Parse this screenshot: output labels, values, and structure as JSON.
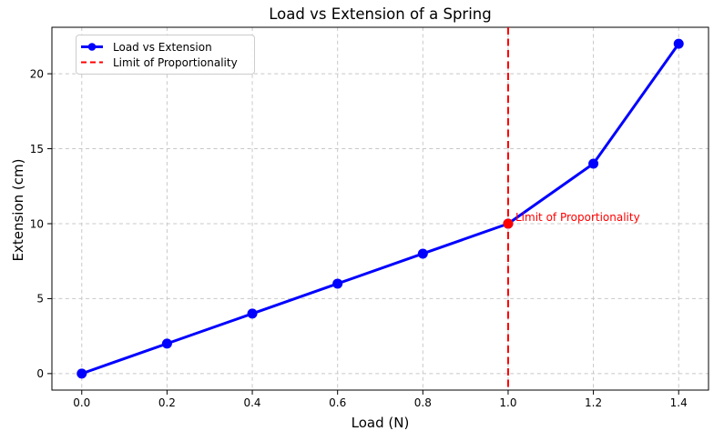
{
  "figure": {
    "title": "Load vs Extension of a Spring",
    "xlabel": "Load (N)",
    "ylabel": "Extension (cm)",
    "annotation": "Limit of Proportionality"
  },
  "legend": {
    "position": "upper-left",
    "items": [
      {
        "label": "Load vs Extension",
        "style": "solid-line-circle-marker"
      },
      {
        "label": "Limit of Proportionality",
        "style": "dashed-line"
      }
    ]
  },
  "colors": {
    "series": "#0000ff",
    "limit": "#ff0000",
    "grid": "#c8c8c8",
    "spine": "#000000",
    "text": "#000000",
    "background": "#ffffff"
  },
  "chart_data": {
    "type": "line",
    "title": "Load vs Extension of a Spring",
    "xlabel": "Load (N)",
    "ylabel": "Extension (cm)",
    "grid": true,
    "legend_position": "upper-left",
    "series": [
      {
        "name": "Load vs Extension",
        "x": [
          0.0,
          0.2,
          0.4,
          0.6,
          0.8,
          1.0,
          1.2,
          1.4
        ],
        "y": [
          0,
          2,
          4,
          6,
          8,
          10,
          14,
          22
        ],
        "color": "#0000ff",
        "marker": "circle",
        "linestyle": "solid"
      }
    ],
    "vline": {
      "x": 1.0,
      "color": "#ff0000",
      "linestyle": "dashed",
      "label": "Limit of Proportionality"
    },
    "highlight_point": {
      "x": 1.0,
      "y": 10,
      "color": "#ff0000",
      "annotation": "Limit of Proportionality"
    },
    "xticks": [
      0.0,
      0.2,
      0.4,
      0.6,
      0.8,
      1.0,
      1.2,
      1.4
    ],
    "xtick_labels": [
      "0.0",
      "0.2",
      "0.4",
      "0.6",
      "0.8",
      "1.0",
      "1.2",
      "1.4"
    ],
    "yticks": [
      0,
      5,
      10,
      15,
      20
    ],
    "ytick_labels": [
      "0",
      "5",
      "10",
      "15",
      "20"
    ],
    "xlim": [
      -0.07,
      1.47
    ],
    "ylim": [
      -1.1,
      23.1
    ]
  }
}
